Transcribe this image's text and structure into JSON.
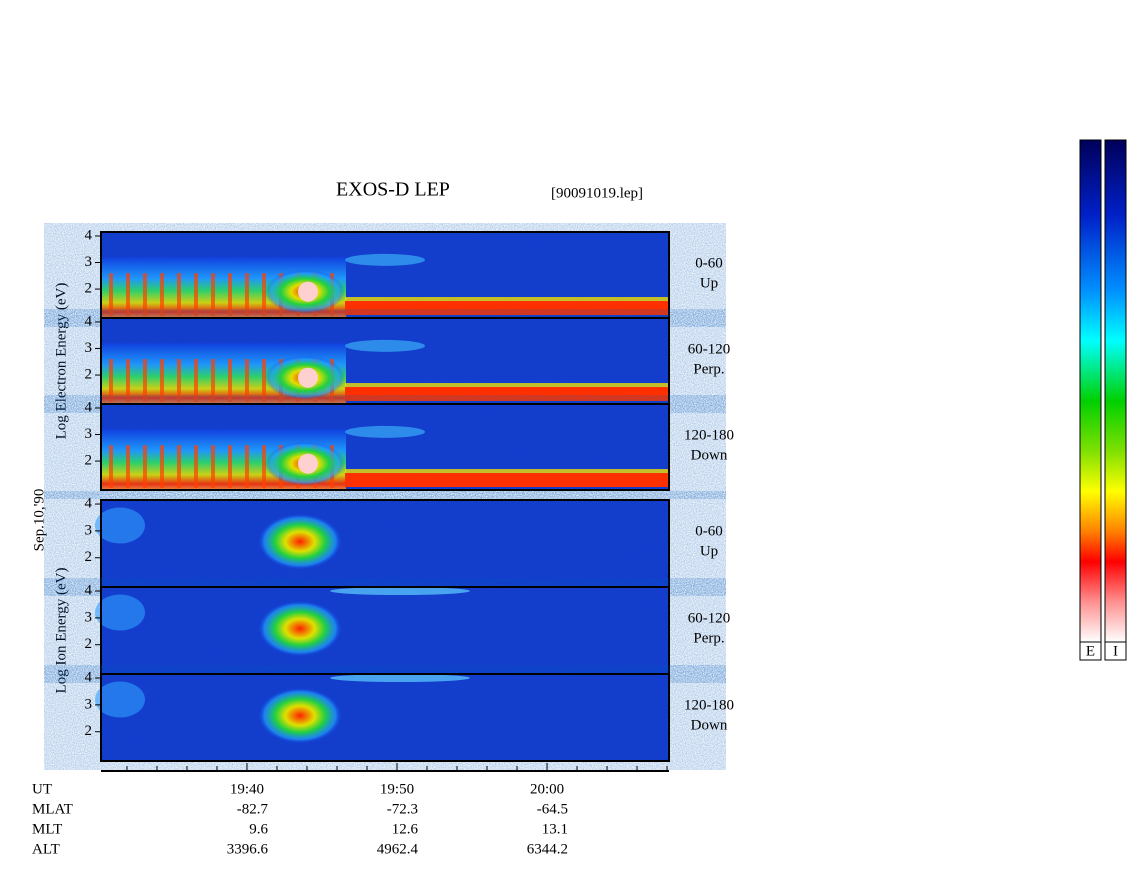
{
  "chart_data": {
    "type": "spectrogram",
    "title": "EXOS-D LEP",
    "subtitle": "[90091019.lep]",
    "date_label": "Sep.10,'90",
    "groups": [
      {
        "axis_label": "Log Electron Energy (eV)",
        "panels": [
          {
            "label": "0-60",
            "sublabel": "Up"
          },
          {
            "label": "60-120",
            "sublabel": "Perp."
          },
          {
            "label": "120-180",
            "sublabel": "Down"
          }
        ]
      },
      {
        "axis_label": "Log Ion Energy (eV)",
        "panels": [
          {
            "label": "0-60",
            "sublabel": "Up"
          },
          {
            "label": "60-120",
            "sublabel": "Perp."
          },
          {
            "label": "120-180",
            "sublabel": "Down"
          }
        ]
      }
    ],
    "ylim": [
      0.91,
      4.15
    ],
    "yticks": [
      2,
      3,
      4
    ],
    "x_label": "UT",
    "xlim": [
      30.27,
      68.13
    ],
    "xticks": [
      {
        "value": 40,
        "label": "19:40"
      },
      {
        "value": 50,
        "label": "19:50"
      },
      {
        "value": 60,
        "label": "20:00"
      }
    ],
    "xminorticks": [
      32,
      34,
      36,
      38,
      42,
      44,
      46,
      48,
      52,
      54,
      56,
      58,
      62,
      64,
      66,
      68
    ],
    "orbit": [
      {
        "name": "MLAT",
        "values": [
          -82.7,
          -72.3,
          -64.5
        ]
      },
      {
        "name": "MLT",
        "values": [
          9.6,
          12.6,
          13.1
        ]
      },
      {
        "name": "ALT",
        "values": [
          3396.6,
          4962.4,
          6344.2
        ]
      }
    ],
    "colorbars": [
      "E",
      "I"
    ]
  }
}
